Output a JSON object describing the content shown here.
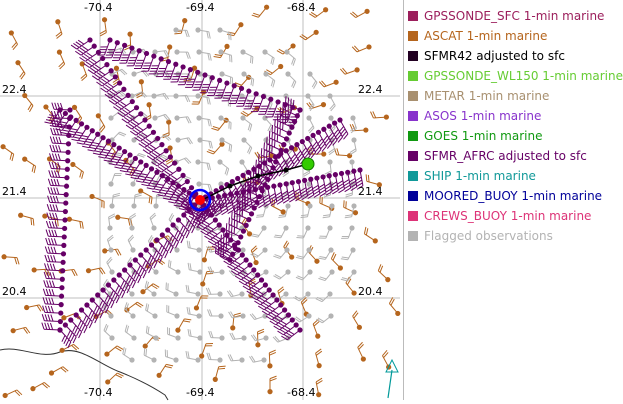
{
  "map": {
    "lon_ticks_top": [
      "-70.4",
      "-69.4",
      "-68.4"
    ],
    "lon_ticks_bottom": [
      "-70.4",
      "-69.4",
      "-68.4"
    ],
    "lat_ticks_left": [
      "22.4",
      "21.4",
      "20.4"
    ],
    "lat_ticks_right": [
      "22.4",
      "21.4",
      "20.4"
    ],
    "colors": {
      "ascat": "#b5651d",
      "sfmr_afrc": "#660066",
      "flagged": "#b3b3b3",
      "gridline": "#bfbfbf",
      "coast": "#333333",
      "storm_center_ring": "#0000ff",
      "storm_center_dot": "#ff0000",
      "goes": "#33cc00",
      "buoy": "#009999"
    }
  },
  "legend": {
    "items": [
      {
        "label": "GPSSONDE_SFC 1-min marine",
        "color": "#9c1f5c"
      },
      {
        "label": "ASCAT 1-min marine",
        "color": "#b5651d"
      },
      {
        "label": "SFMR42 adjusted to sfc",
        "color": "#220022"
      },
      {
        "label": "GPSSONDE_WL150 1-min marine",
        "color": "#66cc33"
      },
      {
        "label": "METAR 1-min marine",
        "color": "#a89070"
      },
      {
        "label": "ASOS 1-min marine",
        "color": "#8833cc"
      },
      {
        "label": "GOES 1-min marine",
        "color": "#119911"
      },
      {
        "label": "SFMR_AFRC adjusted to sfc",
        "color": "#660066"
      },
      {
        "label": "SHIP 1-min marine",
        "color": "#119999"
      },
      {
        "label": "MOORED_BUOY 1-min marine",
        "color": "#000099"
      },
      {
        "label": "CREWS_BUOY 1-min marine",
        "color": "#dd3377"
      },
      {
        "label": "Flagged observations",
        "color": "#b3b3b3"
      }
    ]
  }
}
